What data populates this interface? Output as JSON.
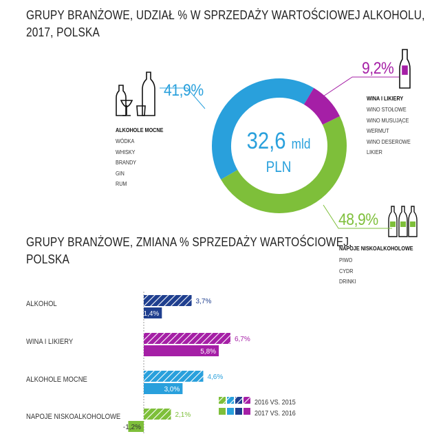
{
  "title1_line1": "GRUPY BRANŻOWE, UDZIAŁ % W SPRZEDAŻY WARTOŚCIOWEJ ALKOHOLU,",
  "title1_line2": "2017, POLSKA",
  "title2_line1": "GRUPY BRANŻOWE, ZMIANA % SPRZEDAŻY WARTOŚCIOWEJ,",
  "title2_line2": "POLSKA",
  "colors": {
    "alkohol": "#1f3f8f",
    "wina": "#a51fa6",
    "mocne": "#29a0dc",
    "napoje": "#7ebf3a"
  },
  "donut_center": {
    "value": "32,6",
    "unit_small": "mld",
    "unit": "PLN"
  },
  "segments": {
    "mocne": {
      "pct": "41,9%",
      "title": "ALKOHOLE MOCNE",
      "items": [
        "WÓDKA",
        "WHISKY",
        "BRANDY",
        "GIN",
        "RUM"
      ]
    },
    "wina": {
      "pct": "9,2%",
      "title": "WINA I LIKIERY",
      "items": [
        "WINO STOŁOWE",
        "WINO MUSUJĄCE",
        "WERMUT",
        "WINO DESEROWE",
        "LIKIER"
      ]
    },
    "napoje": {
      "pct": "48,9%",
      "title": "NAPOJE NISKOALKOHOLOWE",
      "items": [
        "PIWO",
        "CYDR",
        "DRINKI"
      ]
    }
  },
  "chart_data": [
    {
      "type": "pie",
      "labels": [
        "ALKOHOLE MOCNE",
        "WINA I LIKIERY",
        "NAPOJE NISKOALKOHOLOWE"
      ],
      "values": [
        41.9,
        9.2,
        48.9
      ],
      "colors": [
        "#29a0dc",
        "#a51fa6",
        "#7ebf3a"
      ],
      "center_label": "32,6 mld PLN",
      "donut": true
    },
    {
      "type": "bar",
      "orientation": "horizontal",
      "categories": [
        "ALKOHOL",
        "WINA I LIKIERY",
        "ALKOHOLE MOCNE",
        "NAPOJE NISKOALKOHOLOWE"
      ],
      "series": [
        {
          "name": "2016 VS. 2015",
          "values": [
            3.7,
            6.7,
            4.6,
            2.1
          ],
          "labels": [
            "3,7%",
            "6,7%",
            "4,6%",
            "2,1%"
          ],
          "pattern": "hatched"
        },
        {
          "name": "2017 VS. 2016",
          "values": [
            1.4,
            5.8,
            3.0,
            -1.2
          ],
          "labels": [
            "1,4%",
            "5,8%",
            "3,0%",
            "-1,2%"
          ],
          "pattern": "solid"
        }
      ],
      "category_colors": [
        "#1f3f8f",
        "#a51fa6",
        "#29a0dc",
        "#7ebf3a"
      ]
    }
  ]
}
